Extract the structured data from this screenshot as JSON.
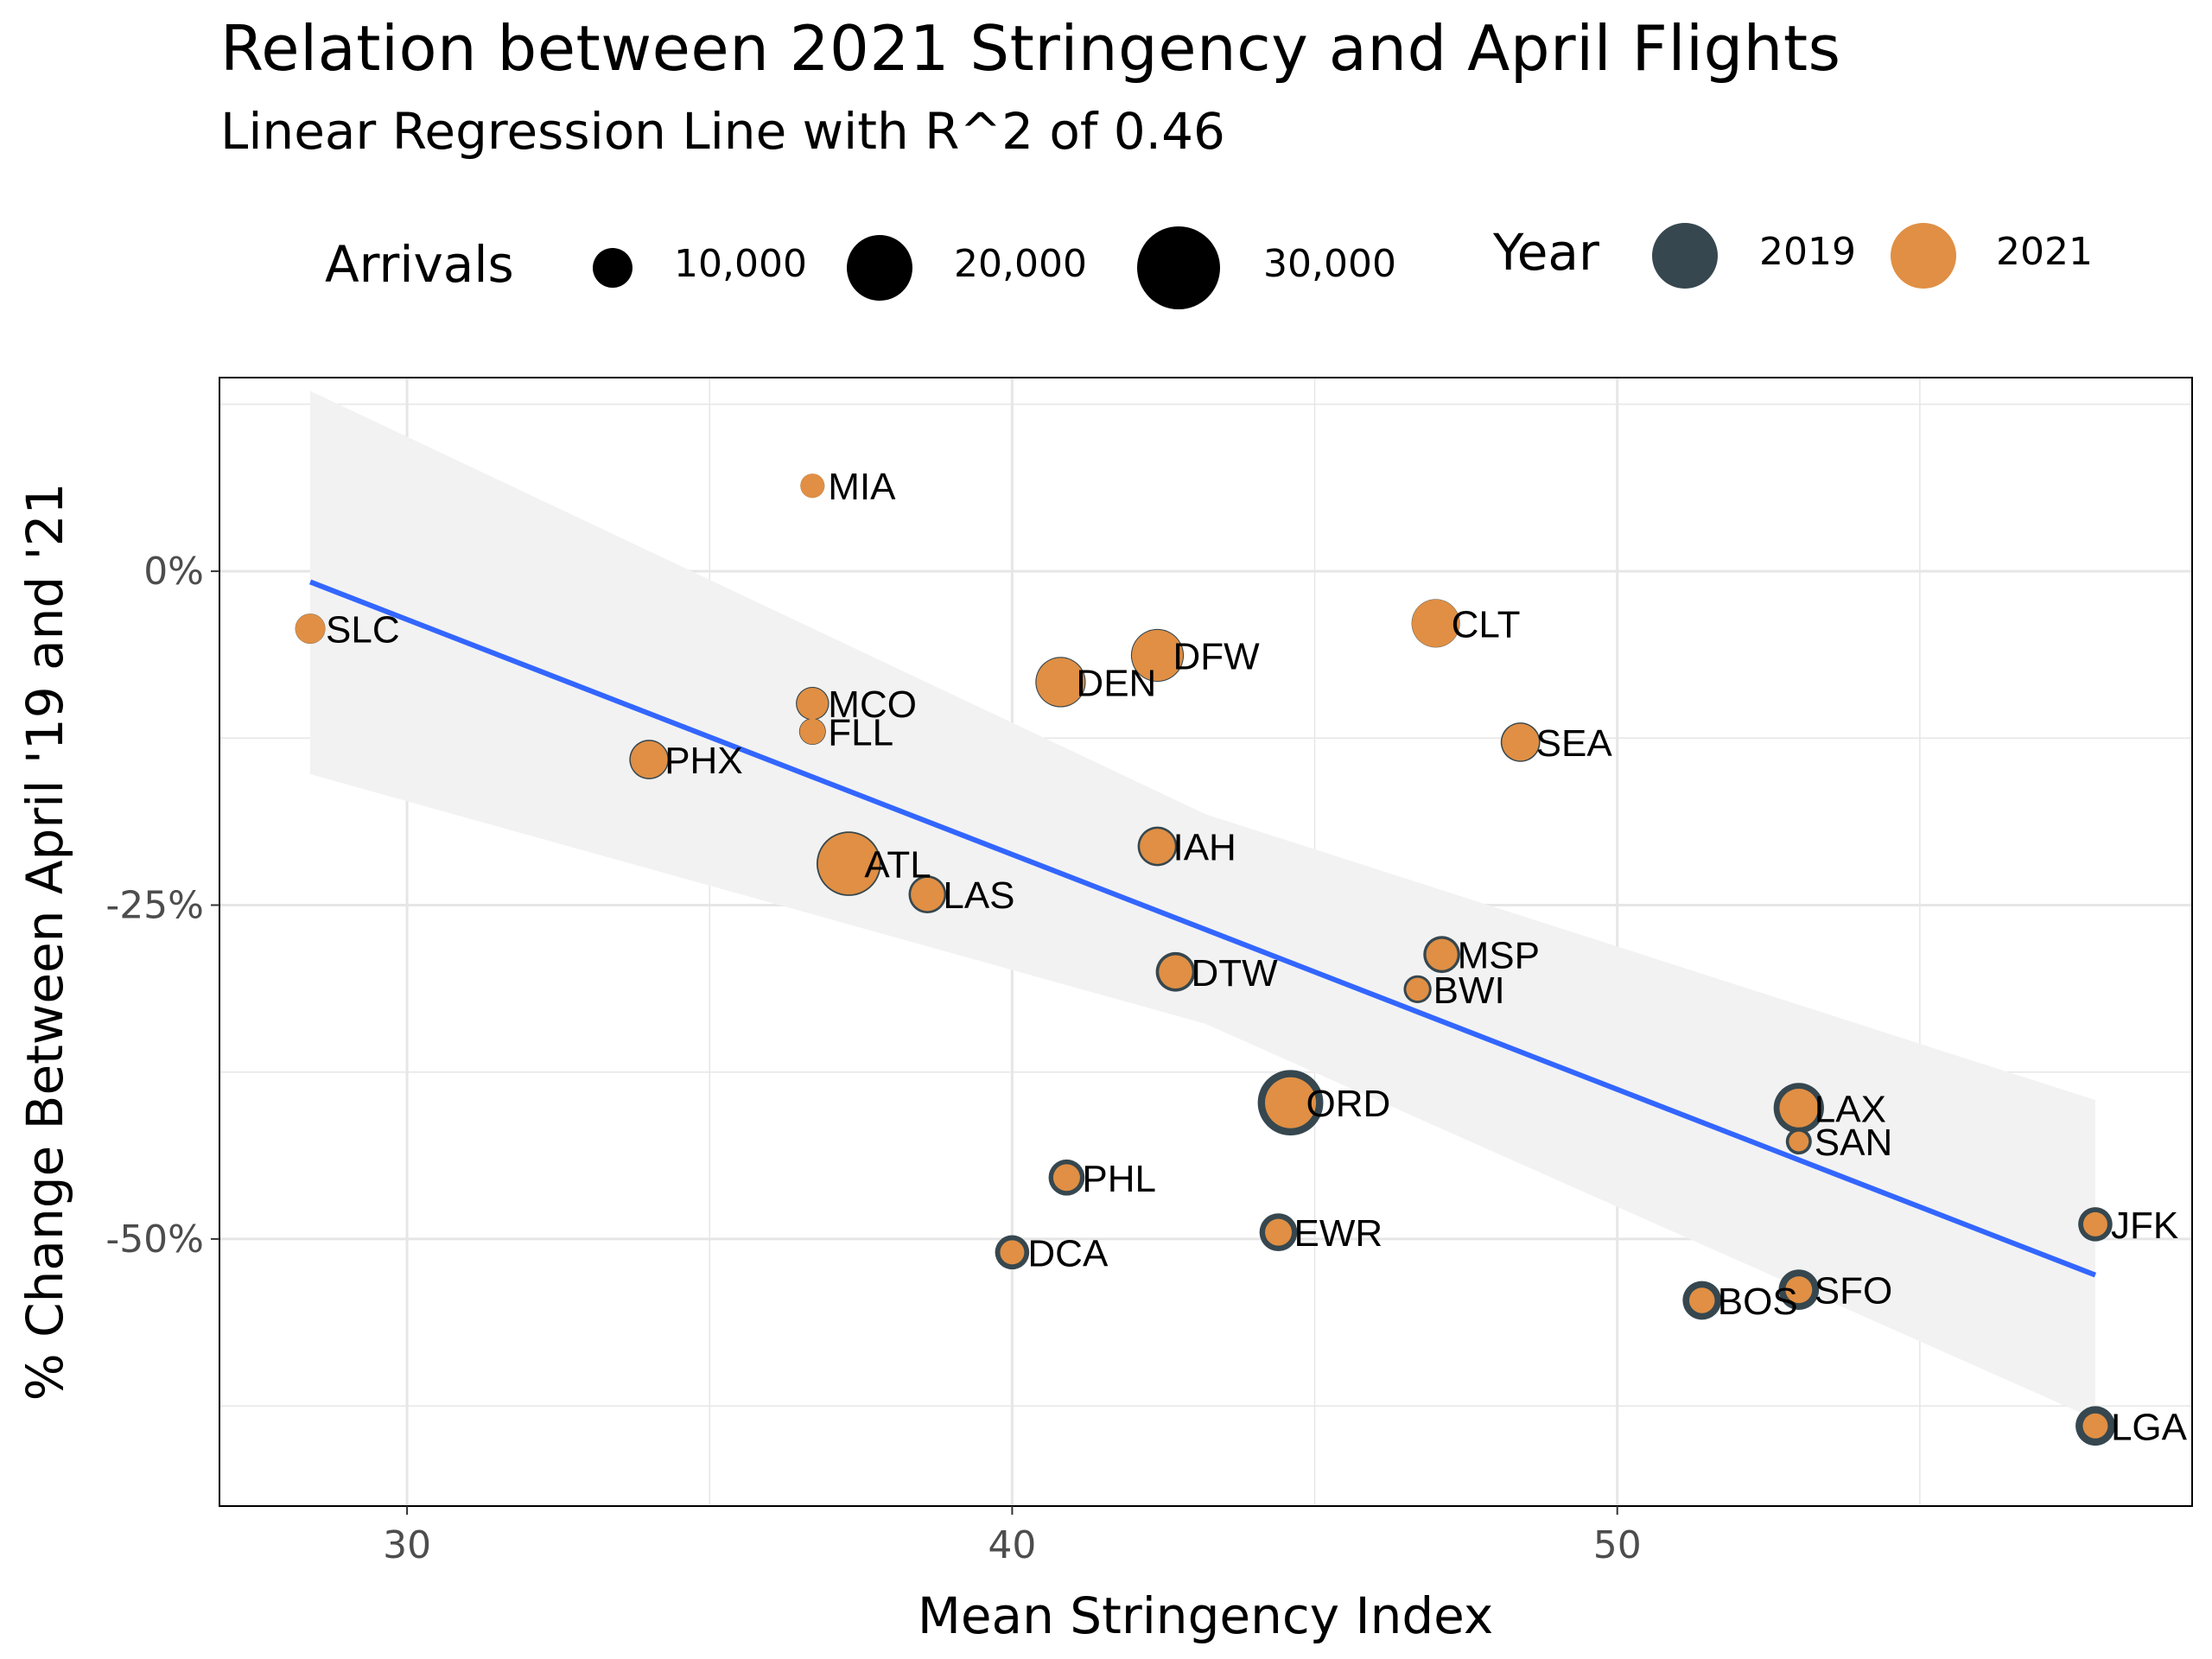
{
  "title": "Relation between 2021 Stringency and April Flights",
  "subtitle": "Linear Regression Line with R^2 of 0.46",
  "legend": {
    "size_title": "Arrivals",
    "size_entries": [
      {
        "label": "10,000",
        "value": 10000
      },
      {
        "label": "20,000",
        "value": 20000
      },
      {
        "label": "30,000",
        "value": 30000
      }
    ],
    "color_title": "Year",
    "color_entries": [
      {
        "label": "2019",
        "color": "#36474f"
      },
      {
        "label": "2021",
        "color": "#e08f44"
      }
    ]
  },
  "colors": {
    "y2019": "#36474f",
    "y2021": "#e08f44",
    "regression": "#3366ff",
    "ribbon": "#ebebeb",
    "grid": "#e6e6e6"
  },
  "chart_data": {
    "type": "scatter",
    "xlabel": "Mean Stringency Index",
    "ylabel": "% Change Between April '19 and '21",
    "xlim": [
      26.9,
      59.5
    ],
    "ylim": [
      -70,
      14.5
    ],
    "x_ticks": [
      30,
      40,
      50
    ],
    "x_tick_labels": [
      "30",
      "40",
      "50"
    ],
    "y_ticks": [
      0,
      -25,
      -50
    ],
    "y_tick_labels": [
      "0%",
      "-25%",
      "-50%"
    ],
    "regression": {
      "r_squared": 0.46,
      "x": [
        28.4,
        57.9
      ],
      "y": [
        -0.8,
        -52.7
      ]
    },
    "confidence_band": {
      "x": [
        28.4,
        43.2,
        57.9
      ],
      "lower": [
        -15.2,
        -33.9,
        -63.5
      ],
      "upper": [
        13.5,
        -18.2,
        -39.6
      ]
    },
    "points": [
      {
        "label": "MIA",
        "x": 36.7,
        "y": 6.4,
        "arrivals_2019": 4500,
        "arrivals_2021": 4500
      },
      {
        "label": "SLC",
        "x": 28.4,
        "y": -4.3,
        "arrivals_2019": 7000,
        "arrivals_2021": 6800
      },
      {
        "label": "CLT",
        "x": 47.0,
        "y": -3.9,
        "arrivals_2019": 18000,
        "arrivals_2021": 17500
      },
      {
        "label": "DFW",
        "x": 42.4,
        "y": -6.3,
        "arrivals_2019": 21500,
        "arrivals_2021": 20000
      },
      {
        "label": "DEN",
        "x": 40.8,
        "y": -8.3,
        "arrivals_2019": 19500,
        "arrivals_2021": 18000
      },
      {
        "label": "MCO",
        "x": 36.7,
        "y": -9.9,
        "arrivals_2019": 8500,
        "arrivals_2021": 7500
      },
      {
        "label": "FLL",
        "x": 36.7,
        "y": -12.0,
        "arrivals_2019": 5500,
        "arrivals_2021": 5000
      },
      {
        "label": "SEA",
        "x": 48.4,
        "y": -12.8,
        "arrivals_2019": 12000,
        "arrivals_2021": 10500
      },
      {
        "label": "PHX",
        "x": 34.0,
        "y": -14.1,
        "arrivals_2019": 12000,
        "arrivals_2021": 10500
      },
      {
        "label": "IAH",
        "x": 42.4,
        "y": -20.6,
        "arrivals_2019": 12000,
        "arrivals_2021": 9500
      },
      {
        "label": "ATL",
        "x": 37.3,
        "y": -21.9,
        "arrivals_2019": 32000,
        "arrivals_2021": 29000
      },
      {
        "label": "LAS",
        "x": 38.6,
        "y": -24.2,
        "arrivals_2019": 11000,
        "arrivals_2021": 8500
      },
      {
        "label": "MSP",
        "x": 47.1,
        "y": -28.7,
        "arrivals_2019": 10500,
        "arrivals_2021": 7500
      },
      {
        "label": "DTW",
        "x": 42.7,
        "y": -30.0,
        "arrivals_2019": 12000,
        "arrivals_2021": 8500
      },
      {
        "label": "BWI",
        "x": 46.7,
        "y": -31.3,
        "arrivals_2019": 6000,
        "arrivals_2021": 4000
      },
      {
        "label": "ORD",
        "x": 44.6,
        "y": -39.8,
        "arrivals_2019": 33000,
        "arrivals_2021": 20000
      },
      {
        "label": "LAX",
        "x": 53.0,
        "y": -40.2,
        "arrivals_2019": 19500,
        "arrivals_2021": 11500
      },
      {
        "label": "SAN",
        "x": 53.0,
        "y": -42.7,
        "arrivals_2019": 5200,
        "arrivals_2021": 3000
      },
      {
        "label": "PHL",
        "x": 40.9,
        "y": -45.4,
        "arrivals_2019": 10000,
        "arrivals_2021": 5500
      },
      {
        "label": "JFK",
        "x": 57.9,
        "y": -48.9,
        "arrivals_2019": 9000,
        "arrivals_2021": 4500
      },
      {
        "label": "EWR",
        "x": 44.4,
        "y": -49.5,
        "arrivals_2019": 11000,
        "arrivals_2021": 5500
      },
      {
        "label": "DCA",
        "x": 40.0,
        "y": -51.0,
        "arrivals_2019": 9000,
        "arrivals_2021": 4500
      },
      {
        "label": "SFO",
        "x": 53.0,
        "y": -53.8,
        "arrivals_2019": 12500,
        "arrivals_2021": 5500
      },
      {
        "label": "BOS",
        "x": 51.4,
        "y": -54.6,
        "arrivals_2019": 11500,
        "arrivals_2021": 5000
      },
      {
        "label": "LGA",
        "x": 57.9,
        "y": -64.0,
        "arrivals_2019": 12000,
        "arrivals_2021": 4800
      }
    ]
  }
}
